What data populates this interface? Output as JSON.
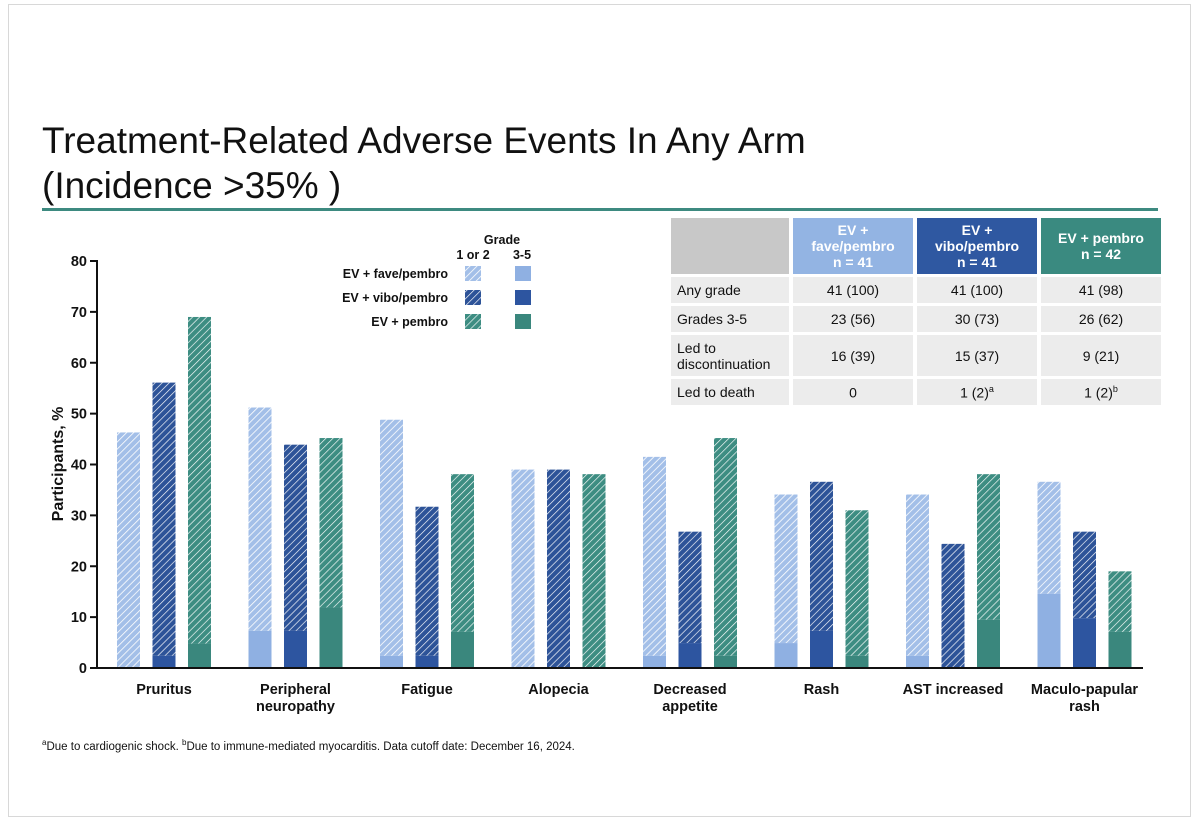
{
  "slide": {
    "title_line1": "Treatment-Related Adverse Events In Any Arm",
    "title_line2": "(Incidence >35% )"
  },
  "legend": {
    "grade_header": "Grade",
    "col_low": "1 or 2",
    "col_high": "3-5",
    "items": [
      "EV + fave/pembro",
      "EV + vibo/pembro",
      "EV + pembro"
    ]
  },
  "colors": {
    "fave_light": "#a3bfe8",
    "fave_solid": "#8fb0e2",
    "vibo_hatch": "#2d5398",
    "vibo_solid": "#2d55a0",
    "pembro_hatch": "#3d8d82",
    "pembro_solid": "#3a877d",
    "accent_rule": "#3d8a80"
  },
  "chart_data": {
    "type": "bar",
    "stacked_within_arm": true,
    "ylabel": "Participants, %",
    "xlabel": "",
    "ylim": [
      0,
      80
    ],
    "yticks": [
      0,
      10,
      20,
      30,
      40,
      50,
      60,
      70,
      80
    ],
    "categories": [
      "Pruritus",
      "Peripheral neuropathy",
      "Fatigue",
      "Alopecia",
      "Decreased appetite",
      "Rash",
      "AST increased",
      "Maculo-papular rash"
    ],
    "series": [
      {
        "name": "EV + fave/pembro",
        "total": [
          46.3,
          51.2,
          48.8,
          39.0,
          41.5,
          34.1,
          34.1,
          36.6
        ],
        "grade3_5": [
          0,
          7.3,
          2.4,
          0,
          2.4,
          4.9,
          2.4,
          14.6
        ]
      },
      {
        "name": "EV + vibo/pembro",
        "total": [
          56.1,
          43.9,
          31.7,
          39.0,
          26.8,
          36.6,
          24.4,
          26.8
        ],
        "grade3_5": [
          2.4,
          7.3,
          2.4,
          0,
          4.9,
          7.3,
          0,
          9.8
        ]
      },
      {
        "name": "EV + pembro",
        "total": [
          69.0,
          45.2,
          38.1,
          38.1,
          45.2,
          31.0,
          38.1,
          19.0
        ],
        "grade3_5": [
          4.8,
          11.9,
          7.1,
          0,
          2.4,
          2.4,
          9.5,
          7.1
        ]
      }
    ]
  },
  "table": {
    "columns": [
      "EV +\nfave/pembro\nn = 41",
      "EV +\nvibo/pembro\nn = 41",
      "EV + pembro\nn = 42"
    ],
    "rows": [
      {
        "label": "Any grade",
        "values": [
          "41 (100)",
          "41 (100)",
          "41 (98)"
        ]
      },
      {
        "label": "Grades 3-5",
        "values": [
          "23 (56)",
          "30 (73)",
          "26 (62)"
        ]
      },
      {
        "label": "Led to\ndiscontinuation",
        "values": [
          "16 (39)",
          "15 (37)",
          "9 (21)"
        ]
      },
      {
        "label": "Led to death",
        "values": [
          "0",
          "1 (2)",
          "1 (2)"
        ],
        "superscripts": [
          "",
          "a",
          "b"
        ]
      }
    ]
  },
  "footnote": {
    "mark_a": "a",
    "text_a": "Due to cardiogenic shock. ",
    "mark_b": "b",
    "text_b": "Due to immune-mediated myocarditis. Data cutoff date: December 16, 2024."
  }
}
